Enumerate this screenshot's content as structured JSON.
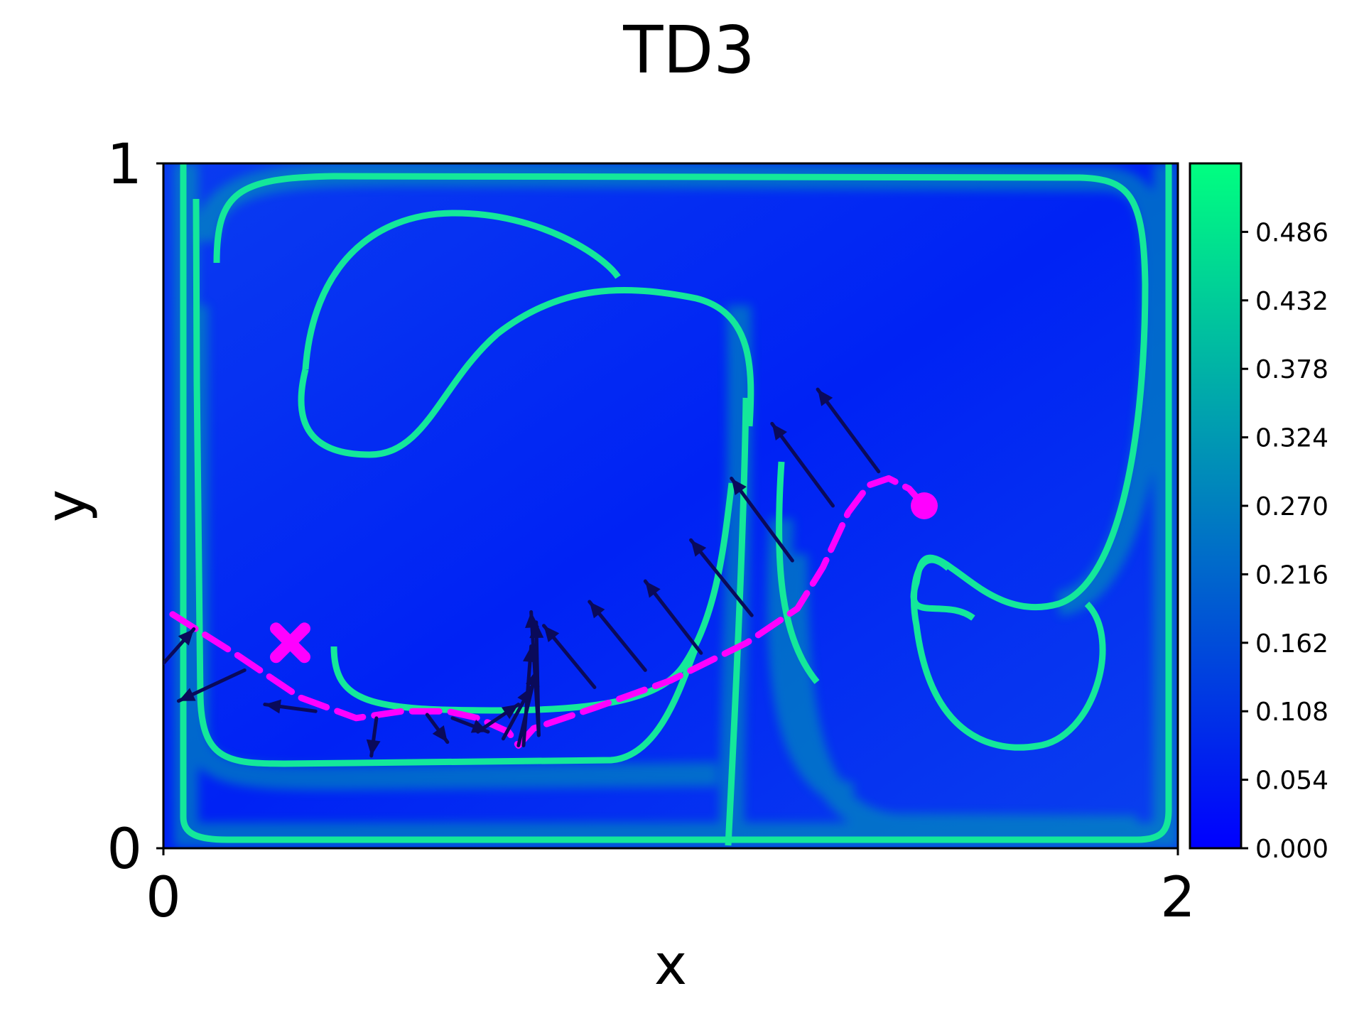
{
  "chart_data": {
    "type": "heatmap",
    "title": "TD3",
    "xlabel": "x",
    "ylabel": "y",
    "xlim": [
      0,
      2
    ],
    "ylim": [
      0,
      1
    ],
    "x_ticks": [
      "0",
      "2"
    ],
    "y_ticks": [
      "0",
      "1"
    ],
    "colormap": "winter",
    "colors": {
      "low": "#0000ff",
      "high": "#00ff80",
      "trajectory": "#ff00ff",
      "arrows": "#0a0a5a"
    },
    "colorbar": {
      "range": [
        0,
        0.54
      ],
      "ticks": [
        "0.000",
        "0.054",
        "0.108",
        "0.162",
        "0.216",
        "0.270",
        "0.324",
        "0.378",
        "0.432",
        "0.486"
      ]
    },
    "start_marker": {
      "shape": "circle",
      "x": 1.5,
      "y": 0.5
    },
    "goal_marker": {
      "shape": "X",
      "x": 0.25,
      "y": 0.3
    },
    "trajectory": [
      [
        1.5,
        0.5
      ],
      [
        1.47,
        0.525
      ],
      [
        1.43,
        0.54
      ],
      [
        1.39,
        0.53
      ],
      [
        1.35,
        0.49
      ],
      [
        1.3,
        0.41
      ],
      [
        1.25,
        0.35
      ],
      [
        1.15,
        0.3
      ],
      [
        1.0,
        0.245
      ],
      [
        0.85,
        0.205
      ],
      [
        0.73,
        0.175
      ],
      [
        0.7,
        0.15
      ],
      [
        0.68,
        0.17
      ],
      [
        0.62,
        0.19
      ],
      [
        0.56,
        0.2
      ],
      [
        0.47,
        0.2
      ],
      [
        0.38,
        0.19
      ],
      [
        0.27,
        0.22
      ],
      [
        0.15,
        0.28
      ],
      [
        0.0,
        0.35
      ]
    ],
    "action_arrows": [
      {
        "x": 0.0,
        "y": 0.27,
        "dx": 0.06,
        "dy": 0.05
      },
      {
        "x": 0.16,
        "y": 0.26,
        "dx": -0.13,
        "dy": -0.045
      },
      {
        "x": 0.3,
        "y": 0.2,
        "dx": -0.1,
        "dy": 0.01
      },
      {
        "x": 0.42,
        "y": 0.19,
        "dx": -0.01,
        "dy": -0.055
      },
      {
        "x": 0.52,
        "y": 0.195,
        "dx": 0.04,
        "dy": -0.04
      },
      {
        "x": 0.57,
        "y": 0.19,
        "dx": 0.07,
        "dy": -0.02
      },
      {
        "x": 0.62,
        "y": 0.17,
        "dx": 0.08,
        "dy": 0.04
      },
      {
        "x": 0.67,
        "y": 0.16,
        "dx": 0.055,
        "dy": 0.075
      },
      {
        "x": 0.7,
        "y": 0.15,
        "dx": 0.035,
        "dy": 0.11
      },
      {
        "x": 0.71,
        "y": 0.15,
        "dx": 0.015,
        "dy": 0.145
      },
      {
        "x": 0.74,
        "y": 0.165,
        "dx": -0.005,
        "dy": 0.165
      },
      {
        "x": 0.74,
        "y": 0.165,
        "dx": -0.015,
        "dy": 0.18
      },
      {
        "x": 0.85,
        "y": 0.235,
        "dx": -0.1,
        "dy": 0.09
      },
      {
        "x": 0.95,
        "y": 0.26,
        "dx": -0.11,
        "dy": 0.1
      },
      {
        "x": 1.06,
        "y": 0.285,
        "dx": -0.11,
        "dy": 0.105
      },
      {
        "x": 1.16,
        "y": 0.34,
        "dx": -0.12,
        "dy": 0.11
      },
      {
        "x": 1.24,
        "y": 0.42,
        "dx": -0.12,
        "dy": 0.12
      },
      {
        "x": 1.32,
        "y": 0.5,
        "dx": -0.12,
        "dy": 0.12
      },
      {
        "x": 1.41,
        "y": 0.55,
        "dx": -0.12,
        "dy": 0.12
      }
    ]
  }
}
